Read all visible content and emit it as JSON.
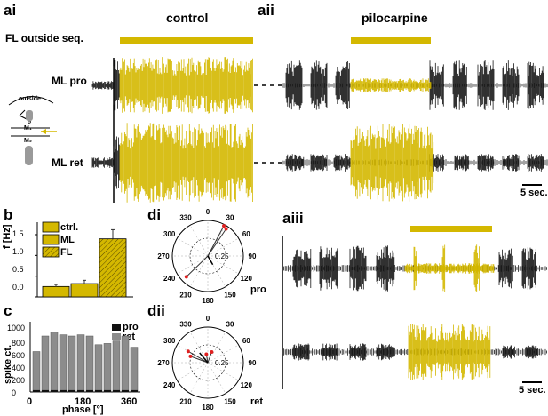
{
  "panels": {
    "ai": "ai",
    "aii": "aii",
    "aiii": "aiii",
    "b": "b",
    "c": "c",
    "di": "di",
    "dii": "dii"
  },
  "conditions": {
    "control": "control",
    "pilocarpine": "pilocarpine"
  },
  "labels": {
    "fl_outside": "FL outside seq.",
    "ml_pro": "ML pro",
    "ml_ret": "ML ret",
    "pro": "pro",
    "ret": "ret"
  },
  "scale_bars": {
    "a": "5 sec.",
    "aiii": "5 sec."
  },
  "schematic": {
    "outside": "outside",
    "p": "P",
    "m1": "M₁",
    "m2": "M₂"
  },
  "colors": {
    "trace": "#1a1a1a",
    "highlight": "#d4b800",
    "hatch_bar": "#c9a800",
    "histogram": "#8c8c8c",
    "phase_vector": "#e02020"
  },
  "chart_data": [
    {
      "type": "bar",
      "panel": "b",
      "categories": [
        "ctrl.",
        "ML",
        "FL"
      ],
      "values": [
        0.25,
        0.32,
        1.4
      ],
      "errors": [
        0.05,
        0.08,
        0.22
      ],
      "ylabel": "f [Hz]",
      "ylim": [
        0,
        1.8
      ],
      "yticks": [
        "0.0",
        "0.5",
        "1.0",
        "1.5"
      ],
      "legend": [
        "ctrl.",
        "ML",
        "FL"
      ],
      "legend_position": "top-left"
    },
    {
      "type": "bar",
      "panel": "c",
      "x": [
        15,
        45,
        75,
        105,
        135,
        165,
        195,
        225,
        255,
        285,
        315,
        345
      ],
      "series": [
        {
          "name": "pro",
          "values": [
            30,
            30,
            30,
            30,
            30,
            30,
            30,
            30,
            30,
            30,
            30,
            30
          ]
        },
        {
          "name": "ret",
          "values": [
            650,
            900,
            960,
            920,
            900,
            920,
            900,
            760,
            780,
            820,
            900,
            720
          ]
        }
      ],
      "xlabel": "phase [°]",
      "ylabel": "spike ct.",
      "xlim": [
        0,
        360
      ],
      "ylim": [
        0,
        1000
      ],
      "xticks": [
        "0",
        "180",
        "360"
      ],
      "yticks": [
        "0",
        "200",
        "400",
        "600",
        "800",
        "1000"
      ],
      "legend_position": "top-right"
    },
    {
      "type": "scatter",
      "panel": "di",
      "title": "pro",
      "angle_ticks": [
        "0",
        "30",
        "60",
        "90",
        "120",
        "150",
        "180",
        "210",
        "240",
        "270",
        "300",
        "330"
      ],
      "radial_tick": "0.25",
      "points_deg_r": [
        [
          28,
          0.48
        ],
        [
          34,
          0.46
        ],
        [
          226,
          0.42
        ]
      ],
      "mean_vector_deg_r": [
        150,
        0.14
      ]
    },
    {
      "type": "scatter",
      "panel": "dii",
      "title": "ret",
      "angle_ticks": [
        "0",
        "30",
        "60",
        "90",
        "120",
        "150",
        "180",
        "210",
        "240",
        "270",
        "300",
        "330"
      ],
      "radial_tick": "0.25",
      "points_deg_r": [
        [
          300,
          0.32
        ],
        [
          290,
          0.26
        ],
        [
          20,
          0.16
        ],
        [
          350,
          0.12
        ]
      ],
      "mean_vector_deg_r": [
        320,
        0.18
      ]
    }
  ]
}
